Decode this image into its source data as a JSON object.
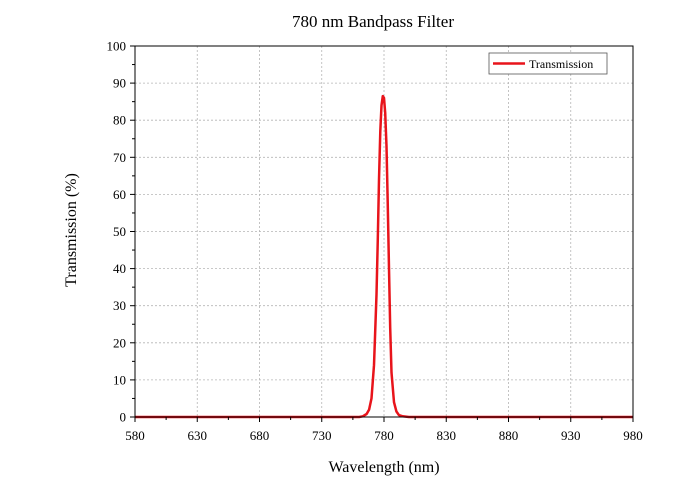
{
  "chart_data": {
    "type": "line",
    "title": "780 nm Bandpass Filter",
    "xlabel": "Wavelength (nm)",
    "ylabel": "Transmission (%)",
    "xlim": [
      580,
      980
    ],
    "ylim": [
      0,
      100
    ],
    "xticks": [
      580,
      630,
      680,
      730,
      780,
      830,
      880,
      930,
      980
    ],
    "yticks": [
      0,
      10,
      20,
      30,
      40,
      50,
      60,
      70,
      80,
      90,
      100
    ],
    "grid": true,
    "legend": "top-right",
    "series": [
      {
        "name": "Transmission",
        "color": "#e8141b",
        "x": [
          580,
          760,
          763,
          766,
          768,
          770,
          772,
          774,
          775,
          776,
          777,
          778,
          779,
          780,
          781,
          782,
          783,
          784,
          785,
          786,
          788,
          790,
          792,
          795,
          800,
          980
        ],
        "y": [
          0,
          0,
          0.2,
          0.8,
          2,
          5,
          14,
          33,
          48,
          64,
          77,
          84,
          86.5,
          86,
          82,
          73,
          58,
          40,
          24,
          12,
          4,
          1.5,
          0.5,
          0.2,
          0,
          0
        ]
      }
    ]
  }
}
